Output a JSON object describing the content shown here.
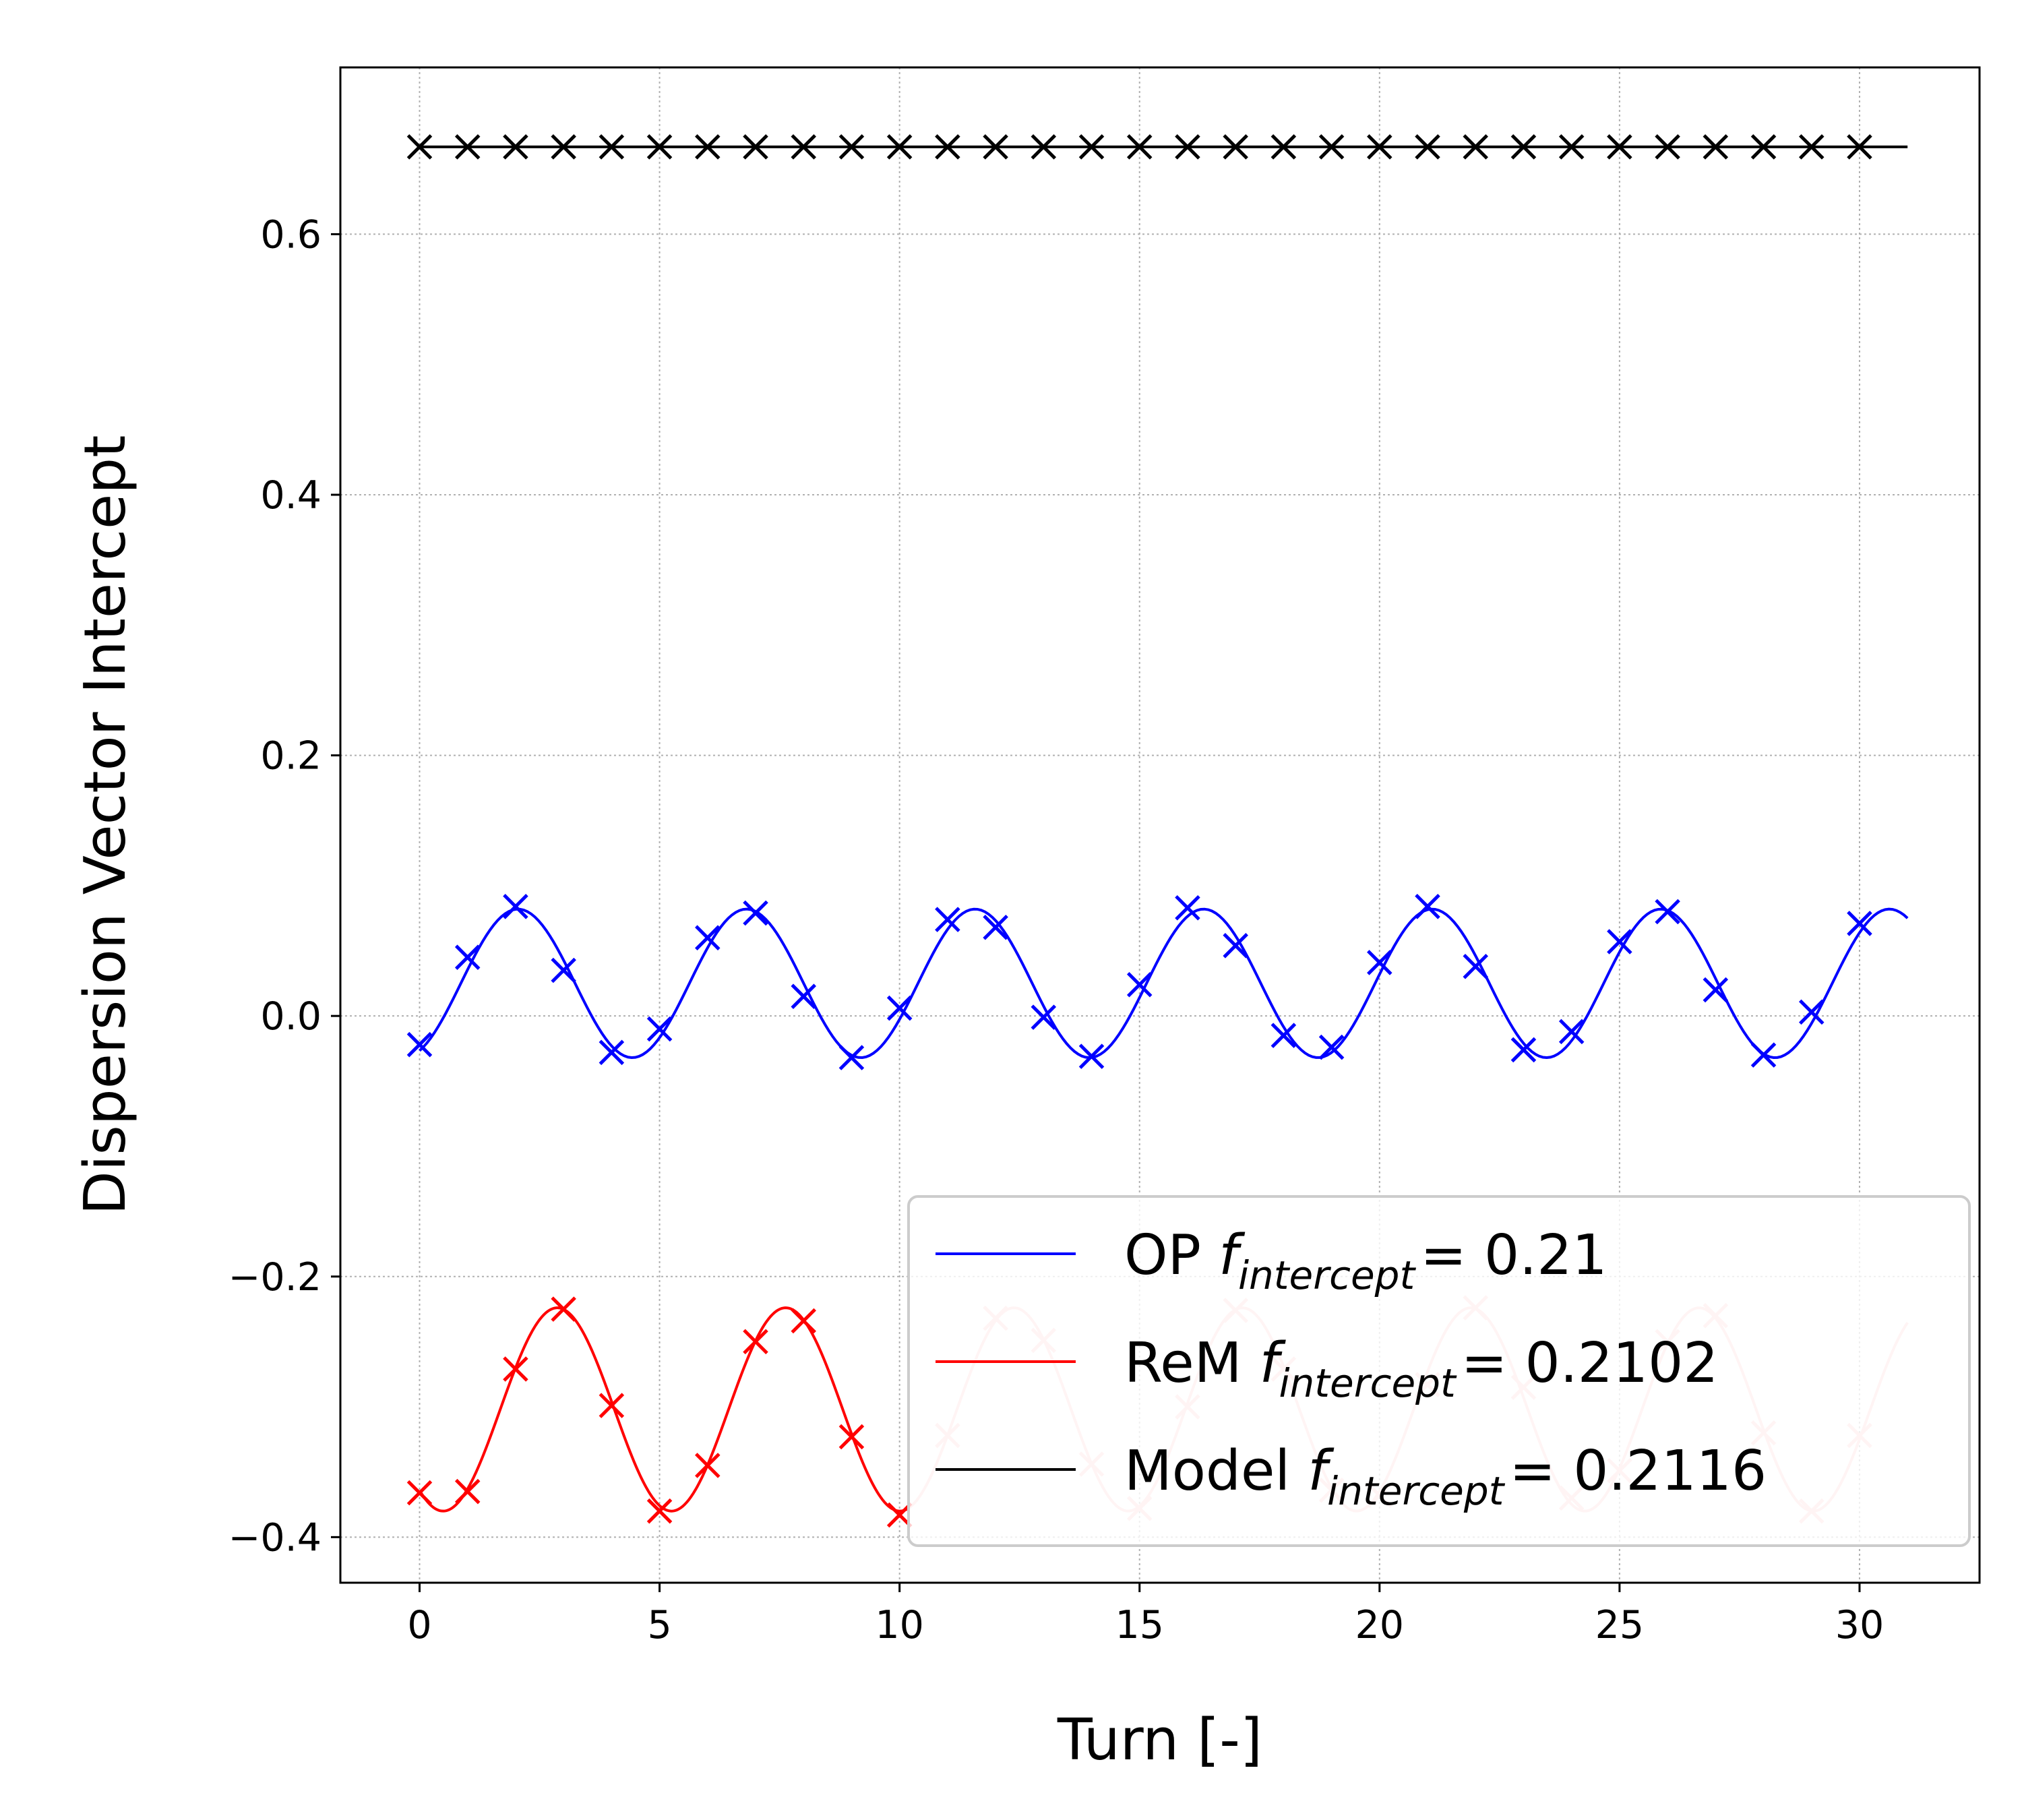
{
  "chart_data": {
    "type": "line",
    "xlabel": "Turn [-]",
    "ylabel": "Dispersion Vector Intercept",
    "xlim": [
      -1.65,
      32.5
    ],
    "ylim": [
      -0.435,
      0.728
    ],
    "xticks": [
      0,
      5,
      10,
      15,
      20,
      25,
      30
    ],
    "xtick_labels": [
      "0",
      "5",
      "10",
      "15",
      "20",
      "25",
      "30"
    ],
    "yticks": [
      -0.4,
      -0.2,
      0.0,
      0.2,
      0.4,
      0.6
    ],
    "ytick_labels": [
      "−0.4",
      "−0.2",
      "0.0",
      "0.2",
      "0.4",
      "0.6"
    ],
    "grid": true,
    "legend_position": "lower right",
    "series": [
      {
        "name": "OP",
        "legend_label": {
          "prefix": "OP ",
          "f": "f",
          "sub": "intercept",
          "value": "= 0.21"
        },
        "color": "#0000ff",
        "marker": "x",
        "x": [
          0,
          1,
          2,
          3,
          4,
          5,
          6,
          7,
          8,
          9,
          10,
          11,
          12,
          13,
          14,
          15,
          16,
          17,
          18,
          19,
          20,
          21,
          22,
          23,
          24,
          25,
          26,
          27,
          28,
          29,
          30
        ],
        "y": [
          -0.022,
          0.045,
          0.084,
          0.035,
          -0.028,
          -0.01,
          0.06,
          0.079,
          0.015,
          -0.032,
          0.006,
          0.074,
          0.068,
          -0.001,
          -0.031,
          0.024,
          0.083,
          0.054,
          -0.015,
          -0.024,
          0.041,
          0.084,
          0.038,
          -0.026,
          -0.012,
          0.057,
          0.08,
          0.02,
          -0.03,
          0.003,
          0.071
        ],
        "fit": {
          "model": "sinusoid",
          "offset": 0.025,
          "amplitude": 0.057,
          "frequency": 0.21,
          "peak_turn": 2.05,
          "x_range": [
            0,
            31
          ]
        }
      },
      {
        "name": "ReM",
        "legend_label": {
          "prefix": "ReM ",
          "f": "f",
          "sub": "intercept",
          "value": "= 0.2102"
        },
        "color": "#ff0000",
        "faded_color": "#ffc8c8",
        "faded_after_x": 10.2,
        "marker": "x",
        "x": [
          0,
          1,
          2,
          3,
          4,
          5,
          6,
          7,
          8,
          9,
          10,
          11,
          12,
          13,
          14,
          15,
          16,
          17,
          18,
          19,
          20,
          21,
          22,
          23,
          24,
          25,
          26,
          27,
          28,
          29,
          30
        ],
        "y": [
          -0.366,
          -0.365,
          -0.271,
          -0.225,
          -0.299,
          -0.38,
          -0.345,
          -0.25,
          -0.234,
          -0.323,
          -0.383,
          -0.322,
          -0.232,
          -0.249,
          -0.344,
          -0.378,
          -0.3,
          -0.226,
          -0.271,
          -0.364,
          -0.368,
          -0.283,
          -0.224,
          -0.285,
          -0.37,
          -0.349,
          -0.25,
          -0.23,
          -0.32,
          -0.38,
          -0.322
        ],
        "fit": {
          "model": "sinusoid",
          "offset": -0.302,
          "amplitude": 0.078,
          "frequency": 0.2102,
          "peak_turn": 2.87,
          "x_range": [
            0,
            31
          ]
        }
      },
      {
        "name": "Model",
        "legend_label": {
          "prefix": "Model ",
          "f": "f",
          "sub": "intercept",
          "value": "= 0.2116"
        },
        "color": "#000000",
        "marker": "x",
        "x": [
          0,
          1,
          2,
          3,
          4,
          5,
          6,
          7,
          8,
          9,
          10,
          11,
          12,
          13,
          14,
          15,
          16,
          17,
          18,
          19,
          20,
          21,
          22,
          23,
          24,
          25,
          26,
          27,
          28,
          29,
          30
        ],
        "y": [
          0.667,
          0.667,
          0.667,
          0.667,
          0.667,
          0.667,
          0.667,
          0.667,
          0.667,
          0.667,
          0.667,
          0.667,
          0.667,
          0.667,
          0.667,
          0.667,
          0.667,
          0.667,
          0.667,
          0.667,
          0.667,
          0.667,
          0.667,
          0.667,
          0.667,
          0.667,
          0.667,
          0.667,
          0.667,
          0.667,
          0.667
        ],
        "fit": {
          "model": "constant",
          "offset": 0.667,
          "x_range": [
            0,
            31
          ]
        }
      }
    ]
  }
}
